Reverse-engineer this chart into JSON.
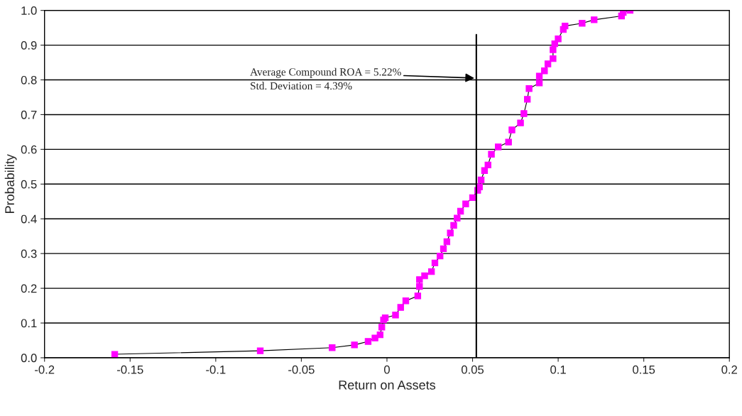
{
  "chart_data": {
    "type": "line",
    "xlabel": "Return on Assets",
    "ylabel": "Probability",
    "series": [
      {
        "color": "#ff00ff",
        "marker": "square",
        "x": [
          -0.159,
          -0.074,
          -0.032,
          -0.019,
          -0.011,
          -0.007,
          -0.004,
          -0.003,
          -0.002,
          -0.001,
          0.005,
          0.008,
          0.011,
          0.018,
          0.019,
          0.019,
          0.022,
          0.026,
          0.028,
          0.031,
          0.033,
          0.035,
          0.037,
          0.039,
          0.041,
          0.043,
          0.046,
          0.05,
          0.053,
          0.054,
          0.055,
          0.057,
          0.059,
          0.061,
          0.065,
          0.071,
          0.073,
          0.078,
          0.08,
          0.082,
          0.083,
          0.089,
          0.089,
          0.092,
          0.094,
          0.097,
          0.097,
          0.098,
          0.1,
          0.103,
          0.104,
          0.114,
          0.121,
          0.137,
          0.138,
          0.142
        ],
        "values": [
          0.01,
          0.02,
          0.029,
          0.037,
          0.047,
          0.057,
          0.066,
          0.088,
          0.109,
          0.115,
          0.123,
          0.145,
          0.164,
          0.178,
          0.205,
          0.225,
          0.236,
          0.248,
          0.273,
          0.293,
          0.314,
          0.334,
          0.359,
          0.381,
          0.402,
          0.422,
          0.443,
          0.461,
          0.482,
          0.492,
          0.512,
          0.539,
          0.555,
          0.586,
          0.607,
          0.621,
          0.656,
          0.676,
          0.703,
          0.744,
          0.775,
          0.791,
          0.811,
          0.826,
          0.846,
          0.861,
          0.887,
          0.904,
          0.918,
          0.945,
          0.955,
          0.963,
          0.973,
          0.984,
          0.994,
          1.0
        ]
      }
    ],
    "xlim": [
      -0.2,
      0.2
    ],
    "xticks": [
      -0.2,
      -0.15,
      -0.1,
      -0.05,
      0,
      0.05,
      0.1,
      0.15,
      0.2
    ],
    "ylim": [
      0,
      1.0
    ],
    "yticks": [
      {
        "value": 0,
        "label": "0.0"
      },
      {
        "value": 0.1,
        "label": "0.1"
      },
      {
        "value": 0.2,
        "label": "0.2"
      },
      {
        "value": 0.3,
        "label": "0.3"
      },
      {
        "value": 0.4,
        "label": "0.4"
      },
      {
        "value": 0.5,
        "label": "0.5"
      },
      {
        "value": 0.6,
        "label": "0.6"
      },
      {
        "value": 0.7,
        "label": "0.7"
      },
      {
        "value": 0.8,
        "label": "0.8"
      },
      {
        "value": 0.9,
        "label": "0.9"
      },
      {
        "value": 1.0,
        "label": "1.0"
      }
    ],
    "grid": "y",
    "ref_lines": [
      {
        "axis": "x",
        "value": 0.0522,
        "color": "#000000"
      }
    ],
    "annotations": [
      {
        "text": "Average Compound ROA = 5.22%",
        "x": 0.0522,
        "y": 0.805
      },
      "Std. Deviation = 4.39%"
    ]
  }
}
